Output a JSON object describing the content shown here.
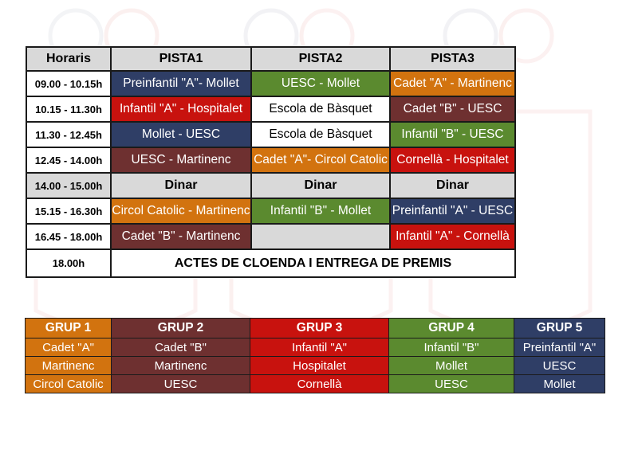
{
  "colors": {
    "blue": "#2f3e66",
    "green": "#5b8a2f",
    "orange": "#d2730f",
    "maroon": "#6e3030",
    "red": "#c8120e",
    "gray": "#d9d9d9",
    "white": "#ffffff"
  },
  "schedule": {
    "headers": [
      "Horaris",
      "PISTA1",
      "PISTA2",
      "PISTA3"
    ],
    "rows": [
      {
        "time": "09.00 - 10.15h",
        "cells": [
          {
            "text": "Preinfantil \"A\"- Mollet",
            "color": "blue"
          },
          {
            "text": "UESC  - Mollet",
            "color": "green"
          },
          {
            "text": "Cadet \"A\" - Martinenc",
            "color": "orange"
          }
        ]
      },
      {
        "time": "10.15 - 11.30h",
        "cells": [
          {
            "text": "Infantil \"A\" - Hospitalet",
            "color": "red"
          },
          {
            "text": "Escola de Bàsquet",
            "color": "white"
          },
          {
            "text": "Cadet \"B\" - UESC",
            "color": "maroon"
          }
        ]
      },
      {
        "time": "11.30 - 12.45h",
        "cells": [
          {
            "text": "Mollet -  UESC",
            "color": "blue"
          },
          {
            "text": "Escola de Bàsquet",
            "color": "white"
          },
          {
            "text": "Infantil  \"B\" - UESC",
            "color": "green"
          }
        ]
      },
      {
        "time": "12.45 - 14.00h",
        "cells": [
          {
            "text": "UESC - Martinenc",
            "color": "maroon"
          },
          {
            "text": "Cadet \"A\"- Circol Catolic",
            "color": "orange"
          },
          {
            "text": "Cornellà - Hospitalet",
            "color": "red"
          }
        ]
      },
      {
        "time": "14.00 - 15.00h",
        "lunch": true,
        "cells": [
          {
            "text": "Dinar",
            "color": "gray"
          },
          {
            "text": "Dinar",
            "color": "gray"
          },
          {
            "text": "Dinar",
            "color": "gray"
          }
        ]
      },
      {
        "time": "15.15 - 16.30h",
        "cells": [
          {
            "text": "Circol Catolic - Martinenc",
            "color": "orange"
          },
          {
            "text": "Infantil  \"B\" - Mollet",
            "color": "green"
          },
          {
            "text": "Preinfantil \"A\" - UESC",
            "color": "blue"
          }
        ]
      },
      {
        "time": "16.45 - 18.00h",
        "cells": [
          {
            "text": "Cadet \"B\" - Martinenc",
            "color": "maroon"
          },
          {
            "text": "",
            "color": "gray"
          },
          {
            "text": "Infantil \"A\" - Cornellà",
            "color": "red"
          }
        ]
      }
    ],
    "closing_time": "18.00h",
    "closing_text": "ACTES DE CLOENDA I ENTREGA DE PREMIS"
  },
  "groups": [
    {
      "name": "GRUP 1",
      "color": "orange",
      "teams": [
        "Cadet \"A\"",
        "Martinenc",
        "Circol Catolic"
      ]
    },
    {
      "name": "GRUP 2",
      "color": "maroon",
      "teams": [
        "Cadet \"B\"",
        "Martinenc",
        "UESC"
      ]
    },
    {
      "name": "GRUP 3",
      "color": "red",
      "teams": [
        "Infantil \"A\"",
        "Hospitalet",
        "Cornellà"
      ]
    },
    {
      "name": "GRUP 4",
      "color": "green",
      "teams": [
        "Infantil  \"B\"",
        "Mollet",
        "UESC"
      ]
    },
    {
      "name": "GRUP 5",
      "color": "blue",
      "teams": [
        "Preinfantil \"A\"",
        "UESC",
        "Mollet"
      ]
    }
  ]
}
